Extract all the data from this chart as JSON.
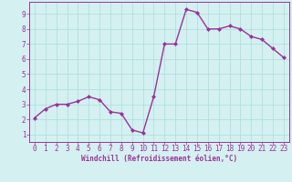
{
  "x": [
    0,
    1,
    2,
    3,
    4,
    5,
    6,
    7,
    8,
    9,
    10,
    11,
    12,
    13,
    14,
    15,
    16,
    17,
    18,
    19,
    20,
    21,
    22,
    23
  ],
  "y": [
    2.1,
    2.7,
    3.0,
    3.0,
    3.2,
    3.5,
    3.3,
    2.5,
    2.4,
    1.3,
    1.1,
    3.5,
    7.0,
    7.0,
    9.3,
    9.1,
    8.0,
    8.0,
    8.2,
    8.0,
    7.5,
    7.3,
    6.7,
    6.1
  ],
  "line_color": "#993399",
  "marker": "D",
  "marker_size": 2.0,
  "background_color": "#d4f0f0",
  "grid_color": "#aadddd",
  "xlabel": "Windchill (Refroidissement éolien,°C)",
  "xlabel_color": "#993399",
  "tick_color": "#993399",
  "spine_color": "#993399",
  "xlim": [
    -0.5,
    23.5
  ],
  "ylim": [
    0.5,
    9.8
  ],
  "yticks": [
    1,
    2,
    3,
    4,
    5,
    6,
    7,
    8,
    9
  ],
  "xticks": [
    0,
    1,
    2,
    3,
    4,
    5,
    6,
    7,
    8,
    9,
    10,
    11,
    12,
    13,
    14,
    15,
    16,
    17,
    18,
    19,
    20,
    21,
    22,
    23
  ],
  "tick_fontsize": 5.5,
  "xlabel_fontsize": 5.5,
  "linewidth": 1.0
}
